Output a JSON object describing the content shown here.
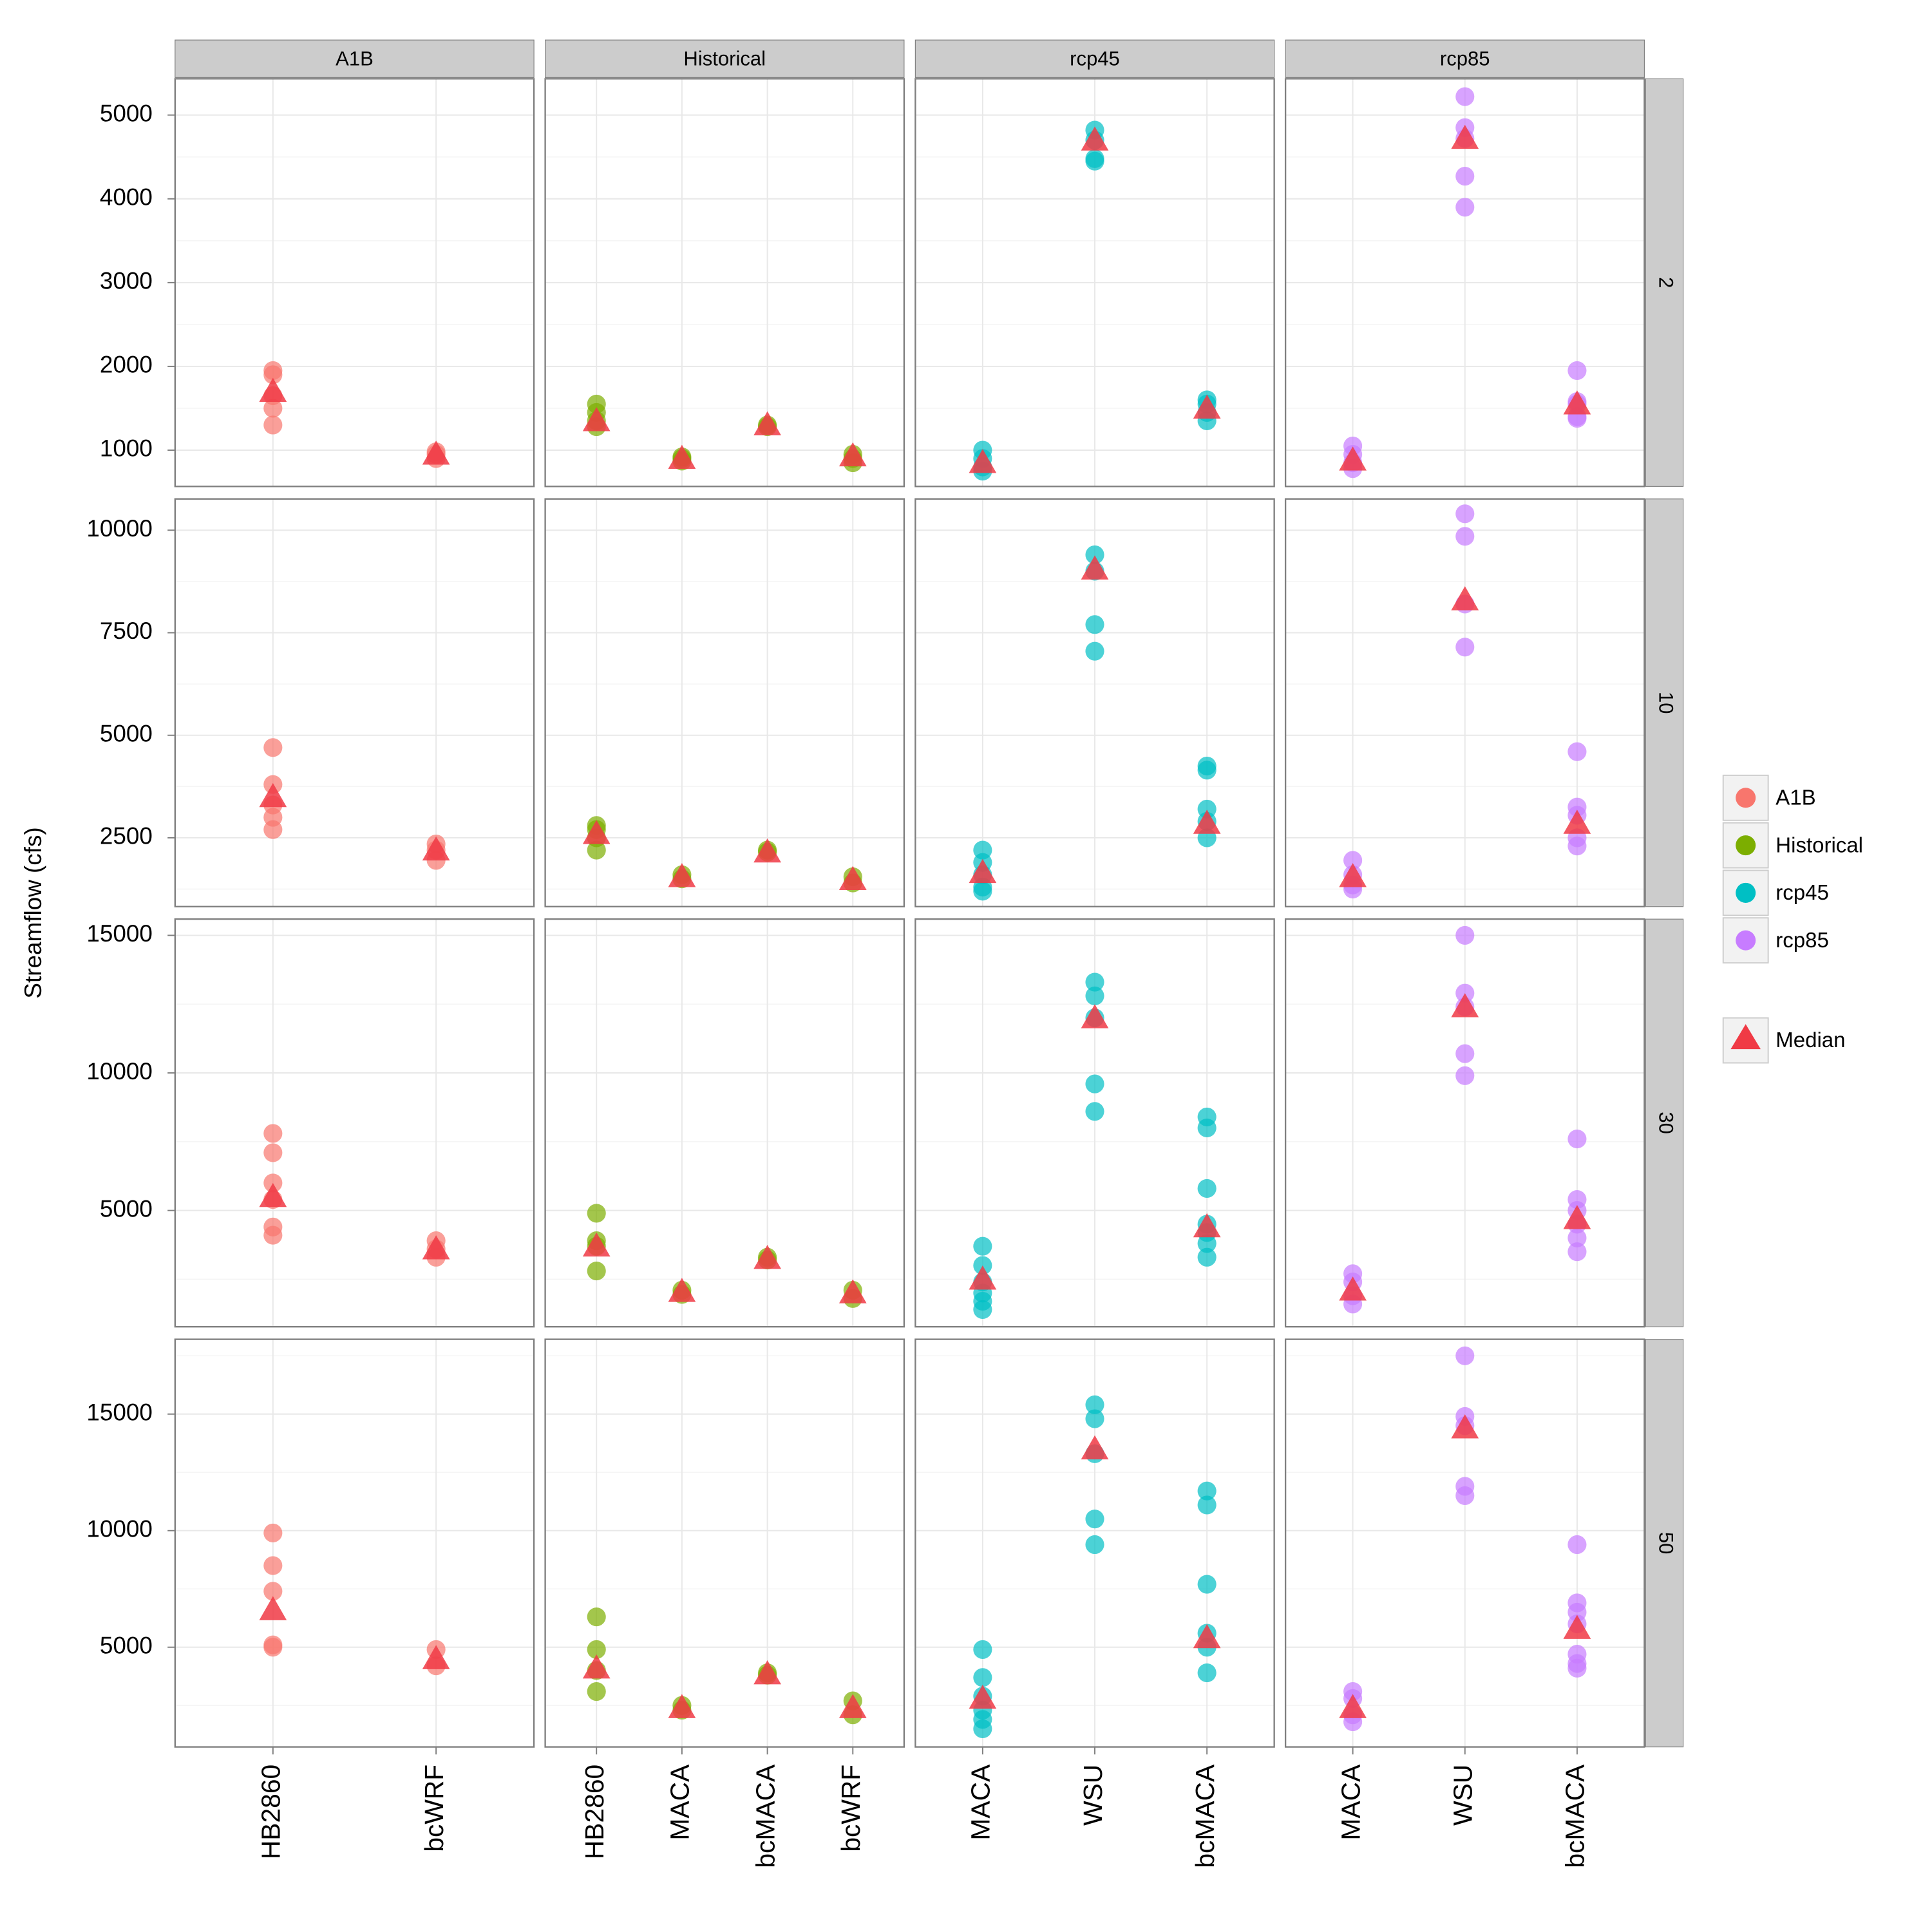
{
  "chart_data": {
    "type": "scatter",
    "ylabel": "Streamflow (cfs)",
    "median_label": "Median",
    "median_color": "#f03a45",
    "grid": true,
    "facet_columns": [
      {
        "label": "A1B",
        "color": "#f8766d",
        "categories": [
          "HB2860",
          "bcWRF"
        ]
      },
      {
        "label": "Historical",
        "color": "#7cae00",
        "categories": [
          "HB2860",
          "MACA",
          "bcMACA",
          "bcWRF"
        ]
      },
      {
        "label": "rcp45",
        "color": "#00bfc4",
        "categories": [
          "MACA",
          "WSU",
          "bcMACA"
        ]
      },
      {
        "label": "rcp85",
        "color": "#c77cff",
        "categories": [
          "MACA",
          "WSU",
          "bcMACA"
        ]
      }
    ],
    "facet_rows": [
      {
        "label": "2",
        "ylim": [
          567,
          5433
        ],
        "yticks": [
          1000,
          2000,
          3000,
          4000,
          5000
        ],
        "minor_yticks": [
          1500,
          2500,
          3500,
          4500
        ]
      },
      {
        "label": "10",
        "ylim": [
          823,
          10762
        ],
        "yticks": [
          2500,
          5000,
          7500,
          10000
        ],
        "minor_yticks": [
          1250,
          3750,
          6250,
          8750
        ]
      },
      {
        "label": "30",
        "ylim": [
          773,
          15591
        ],
        "yticks": [
          5000,
          10000,
          15000
        ],
        "minor_yticks": [
          2500,
          7500,
          12500
        ]
      },
      {
        "label": "50",
        "ylim": [
          722,
          18209
        ],
        "yticks": [
          5000,
          10000,
          15000
        ],
        "minor_yticks": [
          2500,
          7500,
          12500,
          17500
        ]
      }
    ],
    "panels": [
      [
        {
          "values": [
            [
              1950,
              1900,
              1650,
              1500,
              1300
            ],
            [
              950,
              900,
              980
            ]
          ],
          "medians": [
            1700,
            950
          ]
        },
        {
          "values": [
            [
              1550,
              1450,
              1350,
              1280
            ],
            [
              900,
              870,
              920
            ],
            [
              1300,
              1280
            ],
            [
              950,
              850,
              900
            ]
          ],
          "medians": [
            1350,
            900,
            1300,
            930
          ]
        },
        {
          "values": [
            [
              1000,
              900,
              800,
              750
            ],
            [
              4820,
              4700,
              4450,
              4480
            ],
            [
              1600,
              1550,
              1450,
              1350
            ]
          ],
          "medians": [
            850,
            4700,
            1500
          ]
        },
        {
          "values": [
            [
              1050,
              950,
              850,
              780
            ],
            [
              5220,
              4850,
              4720,
              4270,
              3900
            ],
            [
              1950,
              1580,
              1550,
              1400,
              1380
            ]
          ],
          "medians": [
            880,
            4720,
            1550
          ]
        }
      ],
      [
        {
          "values": [
            [
              4700,
              3800,
              3300,
              3000,
              2700
            ],
            [
              2350,
              2200,
              1950
            ]
          ],
          "medians": [
            3500,
            2200
          ]
        },
        {
          "values": [
            [
              2800,
              2700,
              2500,
              2200
            ],
            [
              1600,
              1500
            ],
            [
              2200,
              2150
            ],
            [
              1550,
              1400
            ]
          ],
          "medians": [
            2600,
            1550,
            2150,
            1480
          ]
        },
        {
          "values": [
            [
              2200,
              1900,
              1600,
              1300,
              1200
            ],
            [
              9400,
              9000,
              7700,
              7050
            ],
            [
              4250,
              4150,
              3200,
              2900,
              2500
            ]
          ],
          "medians": [
            1650,
            9050,
            2850
          ]
        },
        {
          "values": [
            [
              1950,
              1600,
              1350,
              1250
            ],
            [
              10400,
              9850,
              8200,
              7150
            ],
            [
              4600,
              3250,
              3050,
              2500,
              2300
            ]
          ],
          "medians": [
            1550,
            8300,
            2850
          ]
        }
      ],
      [
        {
          "values": [
            [
              7800,
              7100,
              6000,
              5400,
              4400,
              4100
            ],
            [
              3900,
              3600,
              3300
            ]
          ],
          "medians": [
            5500,
            3600
          ]
        },
        {
          "values": [
            [
              4900,
              3900,
              3700,
              2800
            ],
            [
              2100,
              1950
            ],
            [
              3300,
              3200
            ],
            [
              2100,
              1800
            ]
          ],
          "medians": [
            3700,
            2050,
            3250,
            2000
          ]
        },
        {
          "values": [
            [
              3700,
              3000,
              2400,
              2000,
              1700,
              1400
            ],
            [
              13300,
              12800,
              12000,
              9600,
              8600
            ],
            [
              8400,
              8000,
              5800,
              4500,
              4200,
              3800,
              3300
            ]
          ],
          "medians": [
            2500,
            12000,
            4400
          ]
        },
        {
          "values": [
            [
              2700,
              2400,
              1900,
              1600
            ],
            [
              15000,
              12900,
              12400,
              10700,
              9900
            ],
            [
              7600,
              5400,
              5000,
              4500,
              4000,
              3500
            ]
          ],
          "medians": [
            2100,
            12400,
            4700
          ]
        }
      ],
      [
        {
          "values": [
            [
              9900,
              8500,
              7400,
              5100,
              5000
            ],
            [
              4900,
              4200
            ]
          ],
          "medians": [
            6600,
            4500
          ]
        },
        {
          "values": [
            [
              6300,
              4900,
              4000,
              3100
            ],
            [
              2500,
              2300
            ],
            [
              3900,
              3800
            ],
            [
              2700,
              2100
            ]
          ],
          "medians": [
            4100,
            2400,
            3850,
            2400
          ]
        },
        {
          "values": [
            [
              4900,
              3700,
              2900,
              2300,
              1900,
              1500
            ],
            [
              15400,
              14800,
              13300,
              10500,
              9400
            ],
            [
              11700,
              11100,
              7700,
              5600,
              5000,
              3900
            ]
          ],
          "medians": [
            2800,
            13500,
            5400
          ]
        },
        {
          "values": [
            [
              3100,
              2800,
              2100,
              1800
            ],
            [
              17500,
              14900,
              14500,
              11900,
              11500
            ],
            [
              9400,
              6900,
              6500,
              6000,
              4700,
              4300,
              4100
            ]
          ],
          "medians": [
            2400,
            14400,
            5800
          ]
        }
      ]
    ]
  }
}
